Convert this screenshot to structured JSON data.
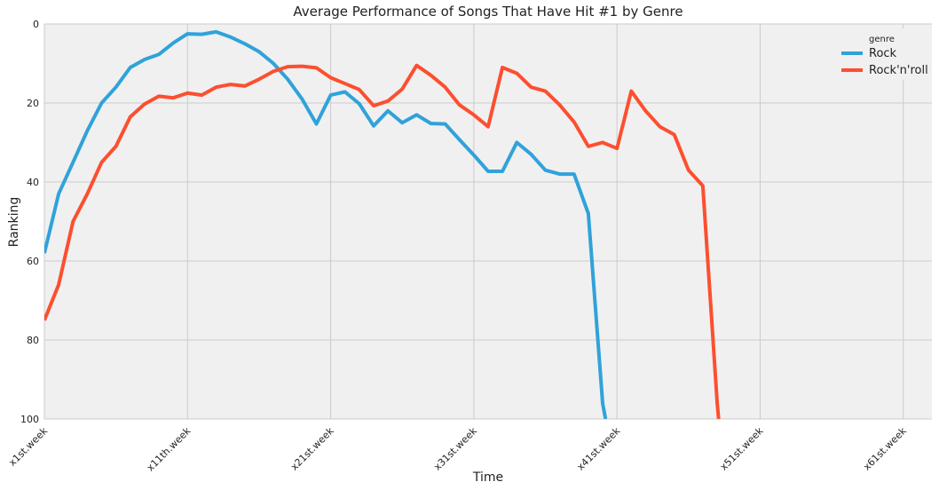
{
  "chart_data": {
    "type": "line",
    "title": "Average Performance of Songs That Have Hit #1 by Genre",
    "xlabel": "Time",
    "ylabel": "Ranking",
    "xlim": [
      1,
      63
    ],
    "ylim": [
      100,
      0
    ],
    "y_inverted": true,
    "yticks": [
      0,
      20,
      40,
      60,
      80,
      100
    ],
    "xtick_positions": [
      1,
      11,
      21,
      31,
      41,
      51,
      61
    ],
    "xtick_labels": [
      "x1st.week",
      "x11th.week",
      "x21st.week",
      "x31st.week",
      "x41st.week",
      "x51st.week",
      "x61st.week"
    ],
    "grid": true,
    "legend": {
      "title": "genre",
      "placement": "top-right"
    },
    "series": [
      {
        "name": "Rock",
        "color": "#30a2da",
        "x": [
          1,
          2,
          3,
          4,
          5,
          6,
          7,
          8,
          9,
          10,
          11,
          12,
          13,
          14,
          15,
          16,
          17,
          18,
          19,
          20,
          21,
          22,
          23,
          24,
          25,
          26,
          27,
          28,
          29,
          30,
          31,
          32,
          33,
          34,
          35,
          36,
          37,
          38,
          39,
          40,
          40.2
        ],
        "y": [
          58,
          43,
          35,
          27,
          20,
          16,
          11,
          9,
          7.7,
          4.8,
          2.5,
          2.6,
          2.0,
          3.3,
          5,
          7,
          10,
          14,
          19,
          25.3,
          18,
          17.2,
          20.2,
          25.8,
          22,
          25,
          23,
          25.2,
          25.3,
          29.3,
          33.2,
          37.3,
          37.3,
          30,
          33,
          37,
          38,
          38,
          48,
          96,
          100
        ]
      },
      {
        "name": "Rock'n'roll",
        "color": "#fc4f30",
        "x": [
          1,
          2,
          3,
          4,
          5,
          6,
          7,
          8,
          9,
          10,
          11,
          12,
          13,
          14,
          15,
          16,
          17,
          18,
          19,
          20,
          21,
          22,
          23,
          24,
          25,
          26,
          27,
          28,
          29,
          30,
          31,
          32,
          33,
          34,
          35,
          36,
          37,
          38,
          39,
          40,
          41,
          42,
          43,
          44,
          45,
          46,
          47,
          48,
          48.1
        ],
        "y": [
          75,
          66,
          50,
          43,
          35,
          31,
          23.5,
          20.3,
          18.3,
          18.7,
          17.5,
          18,
          16,
          15.3,
          15.7,
          14,
          12,
          10.8,
          10.7,
          11.1,
          13.6,
          15.1,
          16.6,
          20.7,
          19.5,
          16.5,
          10.5,
          13,
          16,
          20.5,
          23,
          26,
          11,
          12.5,
          16,
          17,
          20.5,
          24.8,
          31,
          30,
          31.5,
          17,
          22,
          26,
          28,
          37,
          41,
          96,
          100
        ]
      }
    ]
  }
}
